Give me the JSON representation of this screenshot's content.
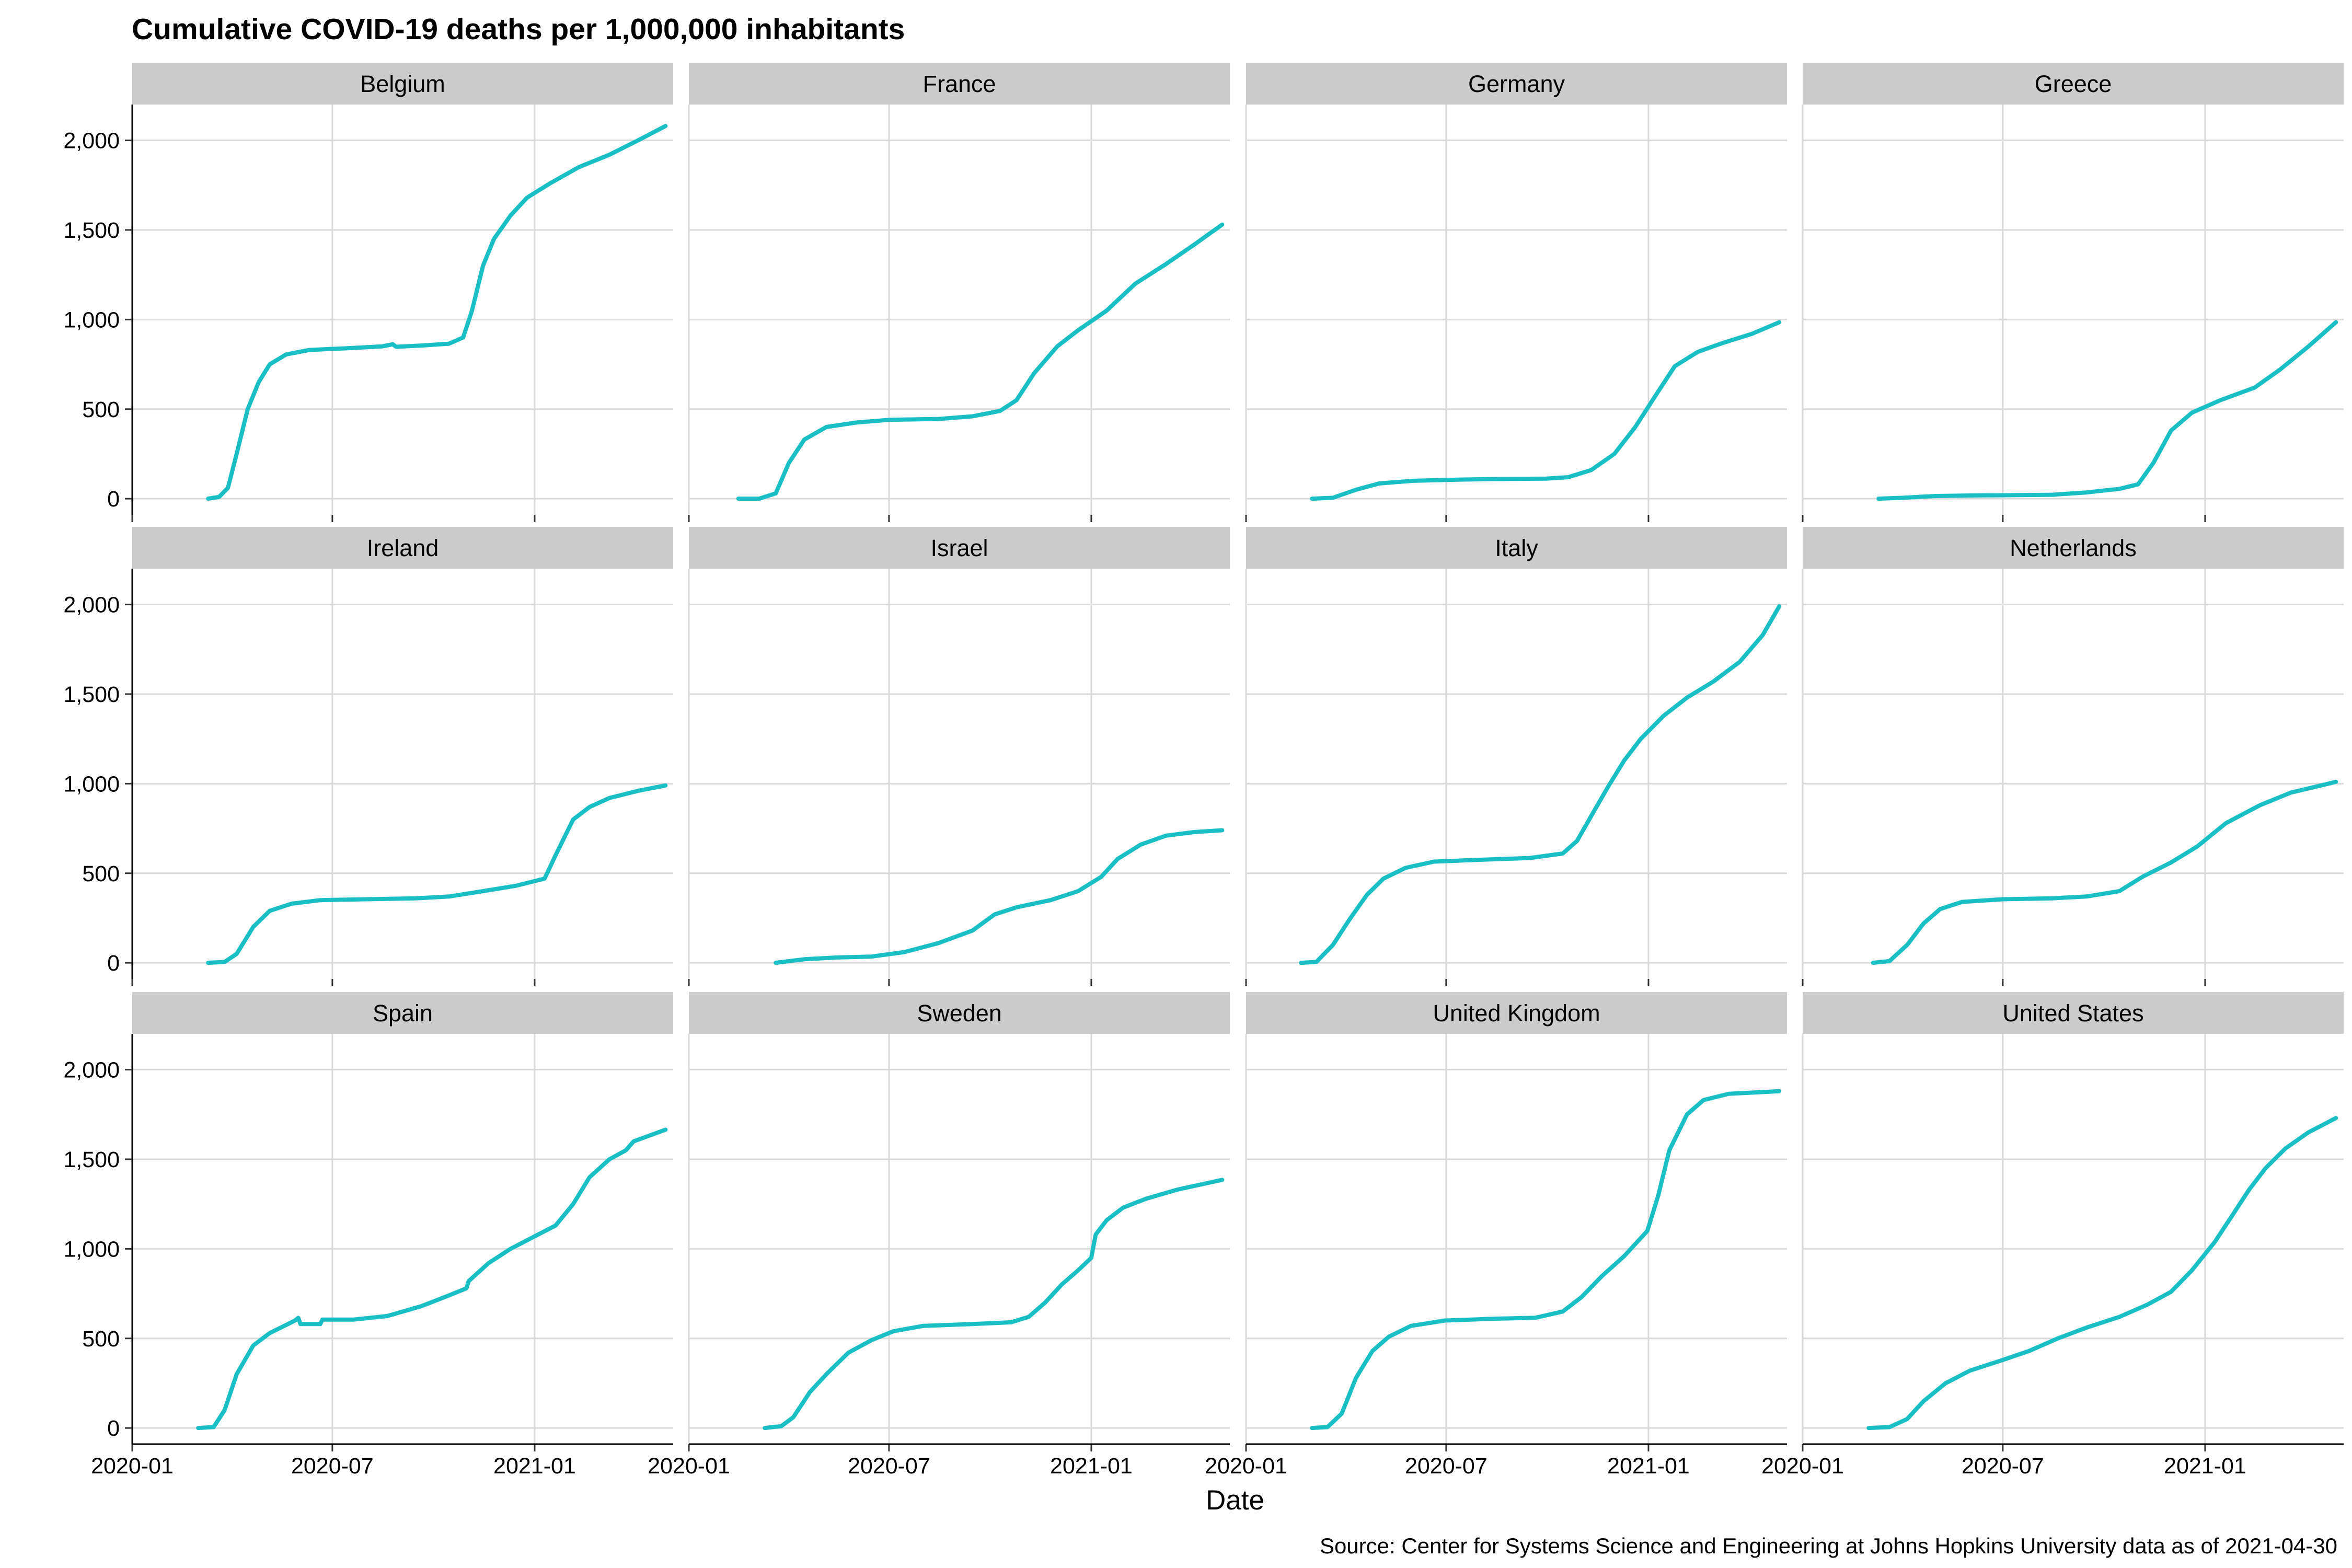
{
  "chart_data": {
    "type": "line",
    "title": "Cumulative COVID-19 deaths per 1,000,000 inhabitants",
    "xlabel": "Date",
    "ylabel": "",
    "caption": "Source: Center for Systems Science and Engineering at Johns Hopkins University data as of 2021-04-30",
    "x_domain": [
      "2020-01-01",
      "2021-05-07"
    ],
    "ylim": [
      -90,
      2200
    ],
    "x_ticks": [
      "2020-01",
      "2020-07",
      "2021-01"
    ],
    "y_ticks": [
      0,
      500,
      1000,
      1500,
      2000
    ],
    "y_tick_labels": [
      "0",
      "500",
      "1,000",
      "1,500",
      "2,000"
    ],
    "grid": true,
    "line_color": "#1ABFC5",
    "facet_columns": 4,
    "facets": [
      {
        "name": "Belgium",
        "points": [
          [
            "2020-03-10",
            0
          ],
          [
            "2020-03-20",
            10
          ],
          [
            "2020-03-28",
            60
          ],
          [
            "2020-04-05",
            250
          ],
          [
            "2020-04-15",
            500
          ],
          [
            "2020-04-25",
            650
          ],
          [
            "2020-05-05",
            750
          ],
          [
            "2020-05-20",
            805
          ],
          [
            "2020-06-10",
            830
          ],
          [
            "2020-07-15",
            840
          ],
          [
            "2020-08-15",
            850
          ],
          [
            "2020-08-25",
            862
          ],
          [
            "2020-08-28",
            848
          ],
          [
            "2020-09-20",
            855
          ],
          [
            "2020-10-15",
            865
          ],
          [
            "2020-10-28",
            900
          ],
          [
            "2020-11-05",
            1050
          ],
          [
            "2020-11-15",
            1300
          ],
          [
            "2020-11-25",
            1450
          ],
          [
            "2020-12-10",
            1580
          ],
          [
            "2020-12-25",
            1680
          ],
          [
            "2021-01-15",
            1760
          ],
          [
            "2021-02-10",
            1850
          ],
          [
            "2021-03-10",
            1920
          ],
          [
            "2021-04-05",
            2000
          ],
          [
            "2021-04-30",
            2080
          ]
        ]
      },
      {
        "name": "France",
        "points": [
          [
            "2020-02-15",
            0
          ],
          [
            "2020-03-05",
            0
          ],
          [
            "2020-03-20",
            30
          ],
          [
            "2020-04-01",
            200
          ],
          [
            "2020-04-15",
            330
          ],
          [
            "2020-05-05",
            400
          ],
          [
            "2020-06-01",
            425
          ],
          [
            "2020-07-01",
            440
          ],
          [
            "2020-08-15",
            445
          ],
          [
            "2020-09-15",
            460
          ],
          [
            "2020-10-10",
            490
          ],
          [
            "2020-10-25",
            550
          ],
          [
            "2020-11-10",
            700
          ],
          [
            "2020-12-01",
            850
          ],
          [
            "2020-12-20",
            940
          ],
          [
            "2021-01-15",
            1050
          ],
          [
            "2021-02-10",
            1200
          ],
          [
            "2021-03-10",
            1310
          ],
          [
            "2021-04-05",
            1420
          ],
          [
            "2021-04-30",
            1530
          ]
        ]
      },
      {
        "name": "Germany",
        "points": [
          [
            "2020-03-01",
            0
          ],
          [
            "2020-03-20",
            5
          ],
          [
            "2020-04-10",
            50
          ],
          [
            "2020-05-01",
            85
          ],
          [
            "2020-06-01",
            100
          ],
          [
            "2020-07-01",
            105
          ],
          [
            "2020-08-15",
            110
          ],
          [
            "2020-09-30",
            112
          ],
          [
            "2020-10-20",
            120
          ],
          [
            "2020-11-10",
            160
          ],
          [
            "2020-12-01",
            250
          ],
          [
            "2020-12-20",
            400
          ],
          [
            "2021-01-10",
            600
          ],
          [
            "2021-01-25",
            740
          ],
          [
            "2021-02-15",
            820
          ],
          [
            "2021-03-10",
            870
          ],
          [
            "2021-04-05",
            920
          ],
          [
            "2021-04-30",
            985
          ]
        ]
      },
      {
        "name": "Greece",
        "points": [
          [
            "2020-03-10",
            0
          ],
          [
            "2020-04-01",
            5
          ],
          [
            "2020-05-01",
            15
          ],
          [
            "2020-06-01",
            18
          ],
          [
            "2020-07-15",
            20
          ],
          [
            "2020-08-15",
            22
          ],
          [
            "2020-09-15",
            35
          ],
          [
            "2020-10-15",
            55
          ],
          [
            "2020-11-01",
            80
          ],
          [
            "2020-11-15",
            200
          ],
          [
            "2020-12-01",
            380
          ],
          [
            "2020-12-20",
            480
          ],
          [
            "2021-01-15",
            550
          ],
          [
            "2021-02-15",
            620
          ],
          [
            "2021-03-10",
            720
          ],
          [
            "2021-04-05",
            850
          ],
          [
            "2021-04-30",
            985
          ]
        ]
      },
      {
        "name": "Ireland",
        "points": [
          [
            "2020-03-10",
            0
          ],
          [
            "2020-03-25",
            5
          ],
          [
            "2020-04-05",
            50
          ],
          [
            "2020-04-20",
            200
          ],
          [
            "2020-05-05",
            290
          ],
          [
            "2020-05-25",
            330
          ],
          [
            "2020-06-20",
            350
          ],
          [
            "2020-08-01",
            355
          ],
          [
            "2020-09-15",
            360
          ],
          [
            "2020-10-15",
            370
          ],
          [
            "2020-11-15",
            400
          ],
          [
            "2020-12-15",
            430
          ],
          [
            "2021-01-10",
            470
          ],
          [
            "2021-01-20",
            600
          ],
          [
            "2021-02-05",
            800
          ],
          [
            "2021-02-20",
            870
          ],
          [
            "2021-03-10",
            920
          ],
          [
            "2021-04-05",
            960
          ],
          [
            "2021-04-30",
            990
          ]
        ]
      },
      {
        "name": "Israel",
        "points": [
          [
            "2020-03-20",
            0
          ],
          [
            "2020-04-15",
            20
          ],
          [
            "2020-05-15",
            30
          ],
          [
            "2020-06-15",
            35
          ],
          [
            "2020-07-15",
            60
          ],
          [
            "2020-08-15",
            110
          ],
          [
            "2020-09-15",
            180
          ],
          [
            "2020-10-05",
            270
          ],
          [
            "2020-10-25",
            310
          ],
          [
            "2020-11-25",
            350
          ],
          [
            "2020-12-20",
            400
          ],
          [
            "2021-01-10",
            480
          ],
          [
            "2021-01-25",
            580
          ],
          [
            "2021-02-15",
            660
          ],
          [
            "2021-03-10",
            710
          ],
          [
            "2021-04-05",
            730
          ],
          [
            "2021-04-30",
            740
          ]
        ]
      },
      {
        "name": "Italy",
        "points": [
          [
            "2020-02-20",
            0
          ],
          [
            "2020-03-05",
            5
          ],
          [
            "2020-03-20",
            100
          ],
          [
            "2020-04-05",
            250
          ],
          [
            "2020-04-20",
            380
          ],
          [
            "2020-05-05",
            470
          ],
          [
            "2020-05-25",
            530
          ],
          [
            "2020-06-20",
            565
          ],
          [
            "2020-08-01",
            575
          ],
          [
            "2020-09-15",
            585
          ],
          [
            "2020-10-15",
            610
          ],
          [
            "2020-10-28",
            680
          ],
          [
            "2020-11-10",
            820
          ],
          [
            "2020-11-25",
            980
          ],
          [
            "2020-12-10",
            1130
          ],
          [
            "2020-12-25",
            1250
          ],
          [
            "2021-01-15",
            1380
          ],
          [
            "2021-02-05",
            1480
          ],
          [
            "2021-03-01",
            1570
          ],
          [
            "2021-03-25",
            1680
          ],
          [
            "2021-04-15",
            1830
          ],
          [
            "2021-04-30",
            1990
          ]
        ]
      },
      {
        "name": "Netherlands",
        "points": [
          [
            "2020-03-05",
            0
          ],
          [
            "2020-03-20",
            10
          ],
          [
            "2020-04-05",
            100
          ],
          [
            "2020-04-20",
            220
          ],
          [
            "2020-05-05",
            300
          ],
          [
            "2020-05-25",
            340
          ],
          [
            "2020-07-01",
            355
          ],
          [
            "2020-08-15",
            360
          ],
          [
            "2020-09-15",
            370
          ],
          [
            "2020-10-15",
            400
          ],
          [
            "2020-11-05",
            480
          ],
          [
            "2020-12-01",
            560
          ],
          [
            "2020-12-25",
            650
          ],
          [
            "2021-01-20",
            780
          ],
          [
            "2021-02-20",
            880
          ],
          [
            "2021-03-20",
            950
          ],
          [
            "2021-04-30",
            1010
          ]
        ]
      },
      {
        "name": "Spain",
        "points": [
          [
            "2020-03-01",
            0
          ],
          [
            "2020-03-15",
            5
          ],
          [
            "2020-03-25",
            100
          ],
          [
            "2020-04-05",
            300
          ],
          [
            "2020-04-20",
            460
          ],
          [
            "2020-05-05",
            530
          ],
          [
            "2020-05-20",
            575
          ],
          [
            "2020-05-28",
            600
          ],
          [
            "2020-05-31",
            615
          ],
          [
            "2020-06-02",
            580
          ],
          [
            "2020-06-20",
            580
          ],
          [
            "2020-06-22",
            605
          ],
          [
            "2020-07-20",
            605
          ],
          [
            "2020-08-20",
            625
          ],
          [
            "2020-09-20",
            680
          ],
          [
            "2020-10-15",
            740
          ],
          [
            "2020-10-31",
            780
          ],
          [
            "2020-11-02",
            820
          ],
          [
            "2020-11-20",
            920
          ],
          [
            "2020-12-10",
            1000
          ],
          [
            "2021-01-01",
            1070
          ],
          [
            "2021-01-20",
            1130
          ],
          [
            "2021-02-05",
            1250
          ],
          [
            "2021-02-20",
            1400
          ],
          [
            "2021-03-10",
            1500
          ],
          [
            "2021-03-25",
            1550
          ],
          [
            "2021-04-01",
            1600
          ],
          [
            "2021-04-30",
            1665
          ]
        ]
      },
      {
        "name": "Sweden",
        "points": [
          [
            "2020-03-10",
            0
          ],
          [
            "2020-03-25",
            10
          ],
          [
            "2020-04-05",
            60
          ],
          [
            "2020-04-20",
            200
          ],
          [
            "2020-05-05",
            300
          ],
          [
            "2020-05-25",
            420
          ],
          [
            "2020-06-15",
            490
          ],
          [
            "2020-07-05",
            540
          ],
          [
            "2020-08-01",
            570
          ],
          [
            "2020-09-15",
            580
          ],
          [
            "2020-10-20",
            590
          ],
          [
            "2020-11-05",
            620
          ],
          [
            "2020-11-20",
            700
          ],
          [
            "2020-12-05",
            800
          ],
          [
            "2020-12-20",
            880
          ],
          [
            "2021-01-01",
            950
          ],
          [
            "2021-01-05",
            1080
          ],
          [
            "2021-01-15",
            1160
          ],
          [
            "2021-01-30",
            1230
          ],
          [
            "2021-02-20",
            1280
          ],
          [
            "2021-03-20",
            1330
          ],
          [
            "2021-04-30",
            1385
          ]
        ]
      },
      {
        "name": "United Kingdom",
        "points": [
          [
            "2020-03-01",
            0
          ],
          [
            "2020-03-15",
            5
          ],
          [
            "2020-03-28",
            80
          ],
          [
            "2020-04-10",
            280
          ],
          [
            "2020-04-25",
            430
          ],
          [
            "2020-05-10",
            510
          ],
          [
            "2020-05-30",
            570
          ],
          [
            "2020-06-30",
            600
          ],
          [
            "2020-08-15",
            610
          ],
          [
            "2020-09-20",
            615
          ],
          [
            "2020-10-15",
            650
          ],
          [
            "2020-11-01",
            730
          ],
          [
            "2020-11-20",
            850
          ],
          [
            "2020-12-10",
            960
          ],
          [
            "2020-12-31",
            1100
          ],
          [
            "2021-01-10",
            1300
          ],
          [
            "2021-01-20",
            1550
          ],
          [
            "2021-02-05",
            1750
          ],
          [
            "2021-02-20",
            1830
          ],
          [
            "2021-03-15",
            1865
          ],
          [
            "2021-04-30",
            1880
          ]
        ]
      },
      {
        "name": "United States",
        "points": [
          [
            "2020-03-01",
            0
          ],
          [
            "2020-03-20",
            5
          ],
          [
            "2020-04-05",
            50
          ],
          [
            "2020-04-20",
            150
          ],
          [
            "2020-05-10",
            250
          ],
          [
            "2020-06-01",
            320
          ],
          [
            "2020-07-01",
            380
          ],
          [
            "2020-07-25",
            430
          ],
          [
            "2020-08-20",
            500
          ],
          [
            "2020-09-15",
            560
          ],
          [
            "2020-10-15",
            620
          ],
          [
            "2020-11-10",
            690
          ],
          [
            "2020-12-01",
            760
          ],
          [
            "2020-12-20",
            880
          ],
          [
            "2021-01-10",
            1040
          ],
          [
            "2021-01-25",
            1180
          ],
          [
            "2021-02-10",
            1330
          ],
          [
            "2021-02-25",
            1450
          ],
          [
            "2021-03-15",
            1560
          ],
          [
            "2021-04-05",
            1650
          ],
          [
            "2021-04-30",
            1730
          ]
        ]
      }
    ]
  }
}
